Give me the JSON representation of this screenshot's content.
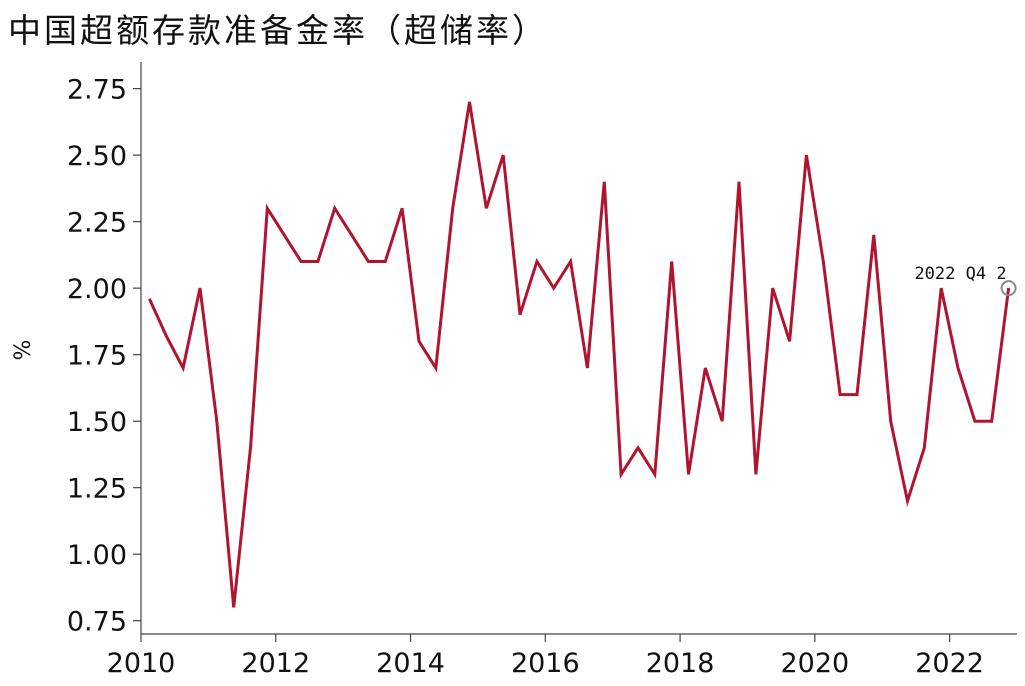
{
  "chart_data": {
    "type": "line",
    "title": "中国超额存款准备金率（超储率）",
    "ylabel": "%",
    "xlabel": "",
    "xlim": [
      2010,
      2023
    ],
    "ylim": [
      0.7,
      2.85
    ],
    "x_ticks": [
      "2010",
      "2012",
      "2014",
      "2016",
      "2018",
      "2020",
      "2022"
    ],
    "y_ticks": [
      "0.75",
      "1.00",
      "1.25",
      "1.50",
      "1.75",
      "2.00",
      "2.25",
      "2.50",
      "2.75"
    ],
    "grid": false,
    "color": "#b0142f",
    "series": [
      {
        "x": [
          2010.125,
          2010.375,
          2010.625,
          2010.875,
          2011.125,
          2011.375,
          2011.625,
          2011.875,
          2012.125,
          2012.375,
          2012.625,
          2012.875,
          2013.125,
          2013.375,
          2013.625,
          2013.875,
          2014.125,
          2014.375,
          2014.625,
          2014.875,
          2015.125,
          2015.375,
          2015.625,
          2015.875,
          2016.125,
          2016.375,
          2016.625,
          2016.875,
          2017.125,
          2017.375,
          2017.625,
          2017.875,
          2018.125,
          2018.375,
          2018.625,
          2018.875,
          2019.125,
          2019.375,
          2019.625,
          2019.875,
          2020.125,
          2020.375,
          2020.625,
          2020.875,
          2021.125,
          2021.375,
          2021.625,
          2021.875,
          2022.125,
          2022.375,
          2022.625,
          2022.875
        ],
        "y": [
          1.96,
          1.82,
          1.7,
          2.0,
          1.5,
          0.8,
          1.4,
          2.3,
          2.2,
          2.1,
          2.1,
          2.3,
          2.2,
          2.1,
          2.1,
          2.3,
          1.8,
          1.7,
          2.3,
          2.7,
          2.3,
          2.5,
          1.9,
          2.1,
          2.0,
          2.1,
          1.7,
          2.4,
          1.3,
          1.4,
          1.3,
          2.1,
          1.3,
          1.7,
          1.5,
          2.4,
          1.3,
          2.0,
          1.8,
          2.5,
          2.1,
          1.6,
          1.6,
          2.2,
          1.5,
          1.2,
          1.4,
          2.0,
          1.7,
          1.5,
          1.5,
          2.0
        ]
      }
    ],
    "annotations": [
      {
        "text": "2022 Q4  2",
        "x": 2022.875,
        "y": 2.0
      }
    ]
  }
}
